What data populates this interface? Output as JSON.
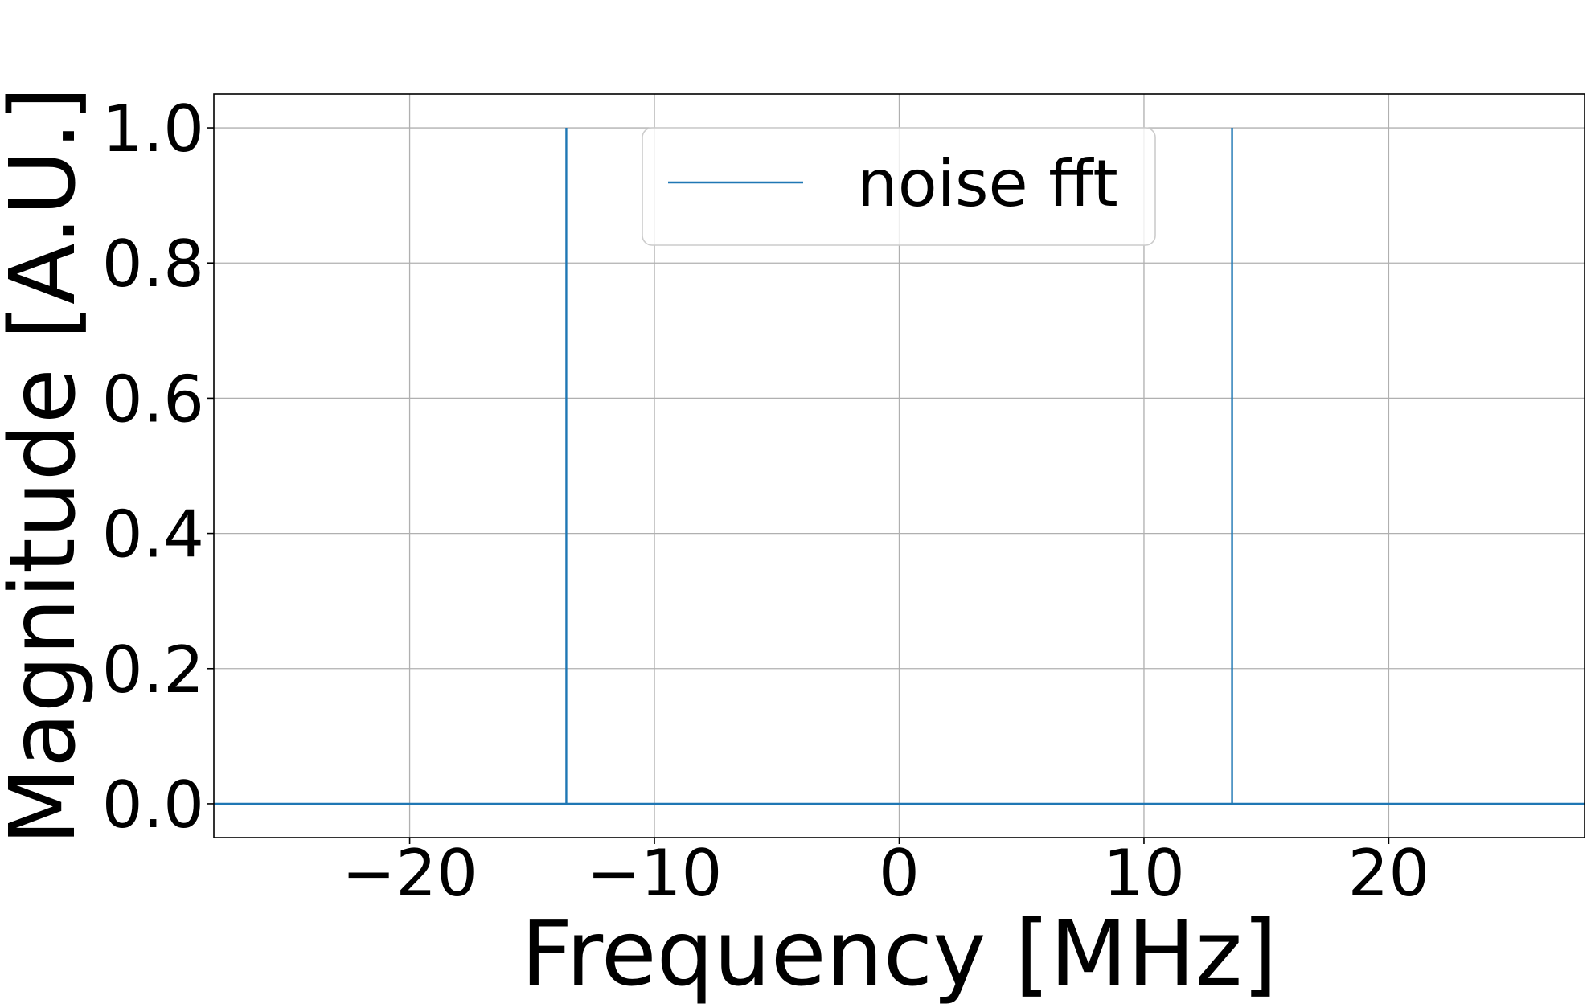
{
  "chart_data": {
    "type": "line",
    "title": "",
    "xlabel": "Frequency [MHz]",
    "ylabel": "Magnitude [A.U.]",
    "xlim": [
      -28,
      28
    ],
    "ylim": [
      -0.05,
      1.05
    ],
    "xticks": [
      -20,
      -10,
      0,
      10,
      20
    ],
    "xtick_labels": [
      "−20",
      "−10",
      "0",
      "10",
      "20"
    ],
    "yticks": [
      0.0,
      0.2,
      0.4,
      0.6,
      0.8,
      1.0
    ],
    "ytick_labels": [
      "0.0",
      "0.2",
      "0.4",
      "0.6",
      "0.8",
      "1.0"
    ],
    "grid": true,
    "legend_position": "upper-center",
    "series": [
      {
        "name": "noise fft",
        "color": "#1f77b4",
        "x": [
          -28,
          -13.6,
          -13.6,
          -13.6,
          13.6,
          13.6,
          13.6,
          28
        ],
        "y": [
          0,
          0,
          1,
          0,
          0,
          1,
          0,
          0
        ]
      }
    ]
  }
}
